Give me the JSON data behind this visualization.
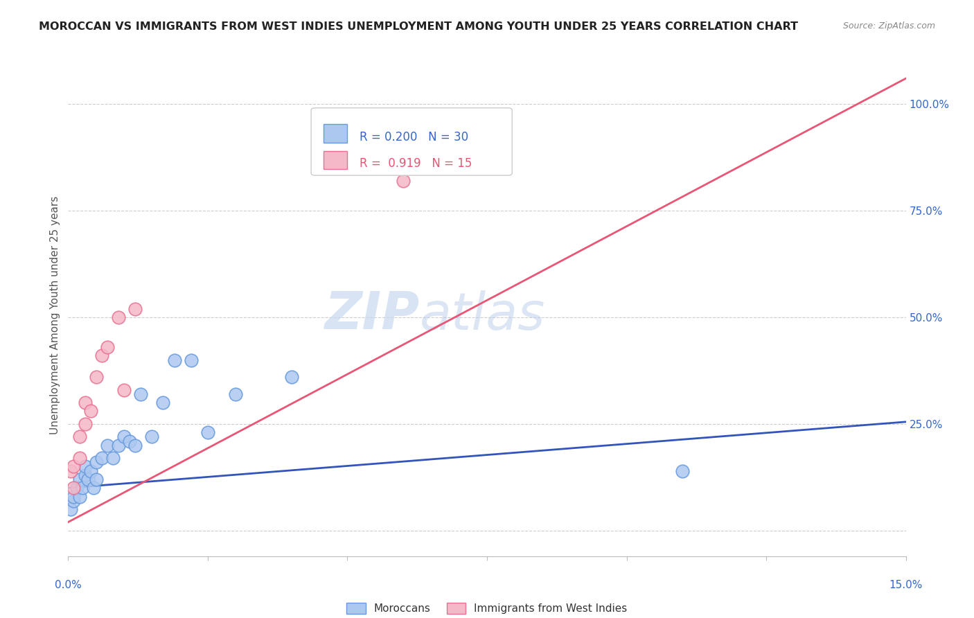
{
  "title": "MOROCCAN VS IMMIGRANTS FROM WEST INDIES UNEMPLOYMENT AMONG YOUTH UNDER 25 YEARS CORRELATION CHART",
  "source": "Source: ZipAtlas.com",
  "ylabel": "Unemployment Among Youth under 25 years",
  "legend_blue_r": "0.200",
  "legend_blue_n": "30",
  "legend_pink_r": "0.919",
  "legend_pink_n": "15",
  "blue_fill": "#adc8f0",
  "blue_edge": "#6699dd",
  "pink_fill": "#f5b8c8",
  "pink_edge": "#e87090",
  "blue_line": "#3355bb",
  "pink_line": "#e85575",
  "watermark_zip": "ZIP",
  "watermark_atlas": "atlas",
  "x_min": 0.0,
  "x_max": 0.15,
  "y_min": -0.06,
  "y_max": 1.07,
  "moroccans_x": [
    0.0005,
    0.001,
    0.001,
    0.0015,
    0.002,
    0.002,
    0.0025,
    0.003,
    0.003,
    0.0035,
    0.004,
    0.0045,
    0.005,
    0.005,
    0.006,
    0.007,
    0.008,
    0.009,
    0.01,
    0.011,
    0.012,
    0.013,
    0.015,
    0.017,
    0.019,
    0.022,
    0.025,
    0.03,
    0.04,
    0.11
  ],
  "moroccans_y": [
    0.05,
    0.07,
    0.08,
    0.1,
    0.08,
    0.12,
    0.1,
    0.13,
    0.15,
    0.12,
    0.14,
    0.1,
    0.16,
    0.12,
    0.17,
    0.2,
    0.17,
    0.2,
    0.22,
    0.21,
    0.2,
    0.32,
    0.22,
    0.3,
    0.4,
    0.4,
    0.23,
    0.32,
    0.36,
    0.14
  ],
  "west_indies_x": [
    0.0005,
    0.001,
    0.001,
    0.002,
    0.002,
    0.003,
    0.003,
    0.004,
    0.005,
    0.006,
    0.007,
    0.009,
    0.01,
    0.012,
    0.06
  ],
  "west_indies_y": [
    0.14,
    0.1,
    0.15,
    0.17,
    0.22,
    0.25,
    0.3,
    0.28,
    0.36,
    0.41,
    0.43,
    0.5,
    0.33,
    0.52,
    0.82
  ],
  "blue_line_x0": 0.0,
  "blue_line_y0": 0.1,
  "blue_line_x1": 0.15,
  "blue_line_y1": 0.255,
  "pink_line_x0": 0.0,
  "pink_line_y0": 0.02,
  "pink_line_x1": 0.15,
  "pink_line_y1": 1.06
}
